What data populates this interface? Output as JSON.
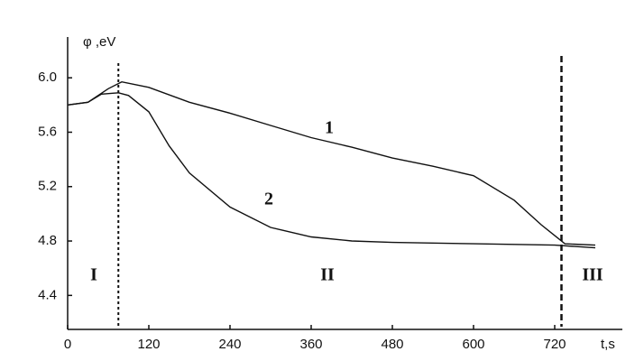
{
  "chart_data": {
    "type": "line",
    "y_label": "φ ,eV",
    "x_label": "t,s",
    "annotations": [
      "1",
      "2",
      "I",
      "II",
      "III"
    ],
    "xlim": [
      0,
      820
    ],
    "ylim": [
      4.15,
      6.3
    ],
    "xticks": [
      0,
      120,
      240,
      360,
      480,
      600,
      720
    ],
    "yticks": [
      {
        "value": 6,
        "label": "6.0"
      },
      5.6,
      5.2,
      4.8,
      4.4
    ],
    "grid": false,
    "vlines": [
      75,
      730
    ],
    "series": [
      {
        "name": "1",
        "color": "#111111",
        "x": [
          0,
          30,
          60,
          80,
          120,
          180,
          240,
          300,
          360,
          420,
          480,
          540,
          600,
          660,
          700,
          735,
          780
        ],
        "values": [
          5.8,
          5.82,
          5.92,
          5.97,
          5.93,
          5.82,
          5.74,
          5.65,
          5.56,
          5.49,
          5.41,
          5.35,
          5.28,
          5.1,
          4.92,
          4.78,
          4.77
        ]
      },
      {
        "name": "2",
        "color": "#111111",
        "x": [
          0,
          30,
          50,
          75,
          90,
          120,
          150,
          180,
          240,
          300,
          360,
          420,
          480,
          600,
          720,
          780
        ],
        "values": [
          5.8,
          5.82,
          5.88,
          5.89,
          5.87,
          5.75,
          5.5,
          5.3,
          5.05,
          4.9,
          4.83,
          4.8,
          4.79,
          4.78,
          4.77,
          4.75
        ]
      }
    ]
  }
}
